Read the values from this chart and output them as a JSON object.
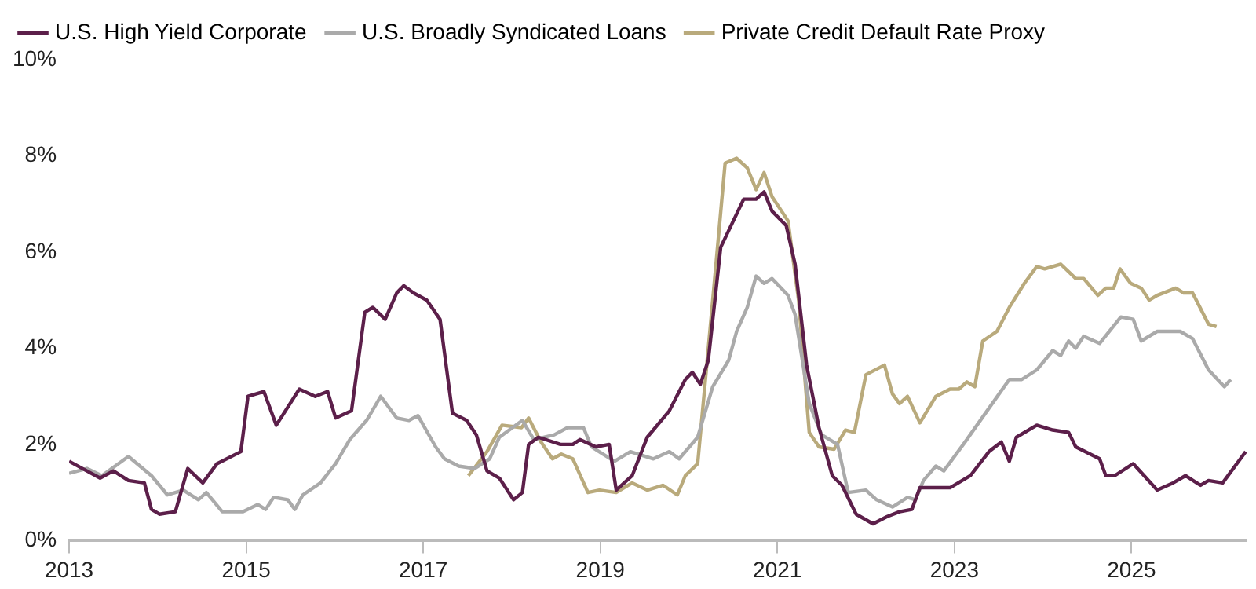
{
  "chart_data": {
    "type": "line",
    "legend": "top left",
    "grid": false,
    "marker": "none",
    "line_style": "solid",
    "xlim": [
      2013,
      2026.3
    ],
    "xticks": [
      2013,
      2015,
      2017,
      2019,
      2021,
      2023,
      2025
    ],
    "ylim": [
      0,
      10
    ],
    "yticks": [
      {
        "value": 0,
        "label": "0%"
      },
      {
        "value": 2,
        "label": "2%"
      },
      {
        "value": 4,
        "label": "4%"
      },
      {
        "value": 6,
        "label": "6%"
      },
      {
        "value": 8,
        "label": "8%"
      },
      {
        "value": 10,
        "label": "10%"
      }
    ],
    "series": [
      {
        "name": "U.S. High Yield Corporate",
        "color": "#5c1f4a",
        "x": [
          2013.0,
          2013.2,
          2013.35,
          2013.5,
          2013.67,
          2013.85,
          2013.93,
          2014.02,
          2014.2,
          2014.34,
          2014.51,
          2014.67,
          2014.94,
          2015.02,
          2015.2,
          2015.34,
          2015.6,
          2015.78,
          2015.92,
          2016.01,
          2016.19,
          2016.34,
          2016.43,
          2016.57,
          2016.7,
          2016.78,
          2016.89,
          2017.04,
          2017.19,
          2017.33,
          2017.49,
          2017.6,
          2017.72,
          2017.86,
          2018.02,
          2018.12,
          2018.19,
          2018.3,
          2018.55,
          2018.69,
          2018.77,
          2018.95,
          2019.1,
          2019.18,
          2019.36,
          2019.53,
          2019.78,
          2019.96,
          2020.04,
          2020.13,
          2020.22,
          2020.36,
          2020.62,
          2020.76,
          2020.85,
          2020.94,
          2021.1,
          2021.2,
          2021.33,
          2021.47,
          2021.62,
          2021.73,
          2021.89,
          2022.08,
          2022.24,
          2022.38,
          2022.52,
          2022.61,
          2022.95,
          2023.18,
          2023.39,
          2023.53,
          2023.62,
          2023.7,
          2023.93,
          2024.11,
          2024.29,
          2024.37,
          2024.64,
          2024.71,
          2024.81,
          2025.02,
          2025.29,
          2025.47,
          2025.61,
          2025.78,
          2025.87,
          2026.03,
          2026.29
        ],
        "values": [
          1.65,
          1.45,
          1.3,
          1.45,
          1.25,
          1.2,
          0.65,
          0.55,
          0.6,
          1.5,
          1.2,
          1.6,
          1.85,
          3.0,
          3.1,
          2.4,
          3.15,
          3.0,
          3.1,
          2.55,
          2.7,
          4.75,
          4.85,
          4.6,
          5.15,
          5.3,
          5.15,
          5.0,
          4.6,
          2.65,
          2.5,
          2.2,
          1.45,
          1.3,
          0.85,
          1.0,
          2.0,
          2.15,
          2.0,
          2.0,
          2.1,
          1.95,
          2.0,
          1.05,
          1.35,
          2.15,
          2.7,
          3.35,
          3.5,
          3.25,
          3.75,
          6.1,
          7.1,
          7.1,
          7.25,
          6.85,
          6.55,
          5.75,
          3.65,
          2.35,
          1.35,
          1.15,
          0.55,
          0.35,
          0.5,
          0.6,
          0.65,
          1.1,
          1.1,
          1.35,
          1.85,
          2.05,
          1.65,
          2.15,
          2.4,
          2.3,
          2.25,
          1.95,
          1.7,
          1.35,
          1.35,
          1.6,
          1.05,
          1.2,
          1.35,
          1.15,
          1.25,
          1.2,
          1.85
        ]
      },
      {
        "name": "U.S. Broadly Syndicated Loans",
        "color": "#aaaaaa",
        "x": [
          2013.0,
          2013.2,
          2013.37,
          2013.67,
          2013.93,
          2014.11,
          2014.29,
          2014.46,
          2014.55,
          2014.73,
          2014.96,
          2015.13,
          2015.22,
          2015.31,
          2015.47,
          2015.55,
          2015.64,
          2015.84,
          2016.01,
          2016.17,
          2016.36,
          2016.52,
          2016.7,
          2016.84,
          2016.94,
          2017.14,
          2017.24,
          2017.4,
          2017.58,
          2017.75,
          2017.86,
          2018.12,
          2018.25,
          2018.48,
          2018.63,
          2018.81,
          2018.9,
          2019.16,
          2019.34,
          2019.6,
          2019.78,
          2019.89,
          2020.1,
          2020.27,
          2020.45,
          2020.54,
          2020.66,
          2020.76,
          2020.85,
          2020.94,
          2021.12,
          2021.2,
          2021.36,
          2021.5,
          2021.68,
          2021.8,
          2022.0,
          2022.12,
          2022.3,
          2022.47,
          2022.56,
          2022.65,
          2022.79,
          2022.88,
          2023.12,
          2023.35,
          2023.62,
          2023.76,
          2023.93,
          2024.11,
          2024.2,
          2024.29,
          2024.37,
          2024.46,
          2024.64,
          2024.88,
          2025.02,
          2025.11,
          2025.29,
          2025.47,
          2025.55,
          2025.69,
          2025.87,
          2026.05,
          2026.12
        ],
        "values": [
          1.4,
          1.5,
          1.35,
          1.75,
          1.35,
          0.95,
          1.05,
          0.85,
          1.0,
          0.6,
          0.6,
          0.75,
          0.65,
          0.9,
          0.85,
          0.65,
          0.95,
          1.2,
          1.6,
          2.1,
          2.5,
          3.0,
          2.55,
          2.5,
          2.6,
          1.95,
          1.7,
          1.55,
          1.5,
          1.7,
          2.15,
          2.5,
          2.1,
          2.2,
          2.35,
          2.35,
          1.95,
          1.65,
          1.85,
          1.7,
          1.85,
          1.7,
          2.15,
          3.2,
          3.75,
          4.35,
          4.85,
          5.5,
          5.35,
          5.45,
          5.1,
          4.7,
          2.85,
          2.2,
          2.0,
          1.0,
          1.05,
          0.85,
          0.7,
          0.9,
          0.85,
          1.25,
          1.55,
          1.45,
          2.05,
          2.65,
          3.35,
          3.35,
          3.55,
          3.95,
          3.85,
          4.15,
          4.0,
          4.25,
          4.1,
          4.65,
          4.6,
          4.15,
          4.35,
          4.35,
          4.35,
          4.2,
          3.55,
          3.2,
          3.35
        ]
      },
      {
        "name": "Private Credit Default Rate Proxy",
        "color": "#b9aa7c",
        "x": [
          2017.51,
          2017.72,
          2017.89,
          2018.11,
          2018.19,
          2018.33,
          2018.46,
          2018.56,
          2018.69,
          2018.86,
          2018.99,
          2019.18,
          2019.36,
          2019.53,
          2019.71,
          2019.87,
          2019.96,
          2020.1,
          2020.27,
          2020.41,
          2020.54,
          2020.66,
          2020.76,
          2020.85,
          2020.94,
          2021.12,
          2021.24,
          2021.36,
          2021.47,
          2021.64,
          2021.77,
          2021.87,
          2022.0,
          2022.21,
          2022.3,
          2022.38,
          2022.47,
          2022.61,
          2022.79,
          2022.95,
          2023.05,
          2023.14,
          2023.23,
          2023.32,
          2023.48,
          2023.62,
          2023.79,
          2023.93,
          2024.02,
          2024.2,
          2024.37,
          2024.46,
          2024.62,
          2024.71,
          2024.8,
          2024.87,
          2024.99,
          2025.11,
          2025.2,
          2025.29,
          2025.5,
          2025.59,
          2025.69,
          2025.87,
          2025.96
        ],
        "values": [
          1.35,
          1.85,
          2.4,
          2.35,
          2.55,
          2.05,
          1.7,
          1.8,
          1.7,
          1.0,
          1.05,
          1.0,
          1.2,
          1.05,
          1.15,
          0.95,
          1.35,
          1.6,
          5.0,
          7.85,
          7.95,
          7.75,
          7.3,
          7.65,
          7.15,
          6.65,
          5.0,
          2.25,
          1.95,
          1.9,
          2.3,
          2.25,
          3.45,
          3.65,
          3.05,
          2.85,
          3.0,
          2.45,
          3.0,
          3.15,
          3.15,
          3.3,
          3.2,
          4.15,
          4.35,
          4.85,
          5.35,
          5.7,
          5.65,
          5.75,
          5.45,
          5.45,
          5.1,
          5.25,
          5.25,
          5.65,
          5.35,
          5.25,
          5.0,
          5.1,
          5.25,
          5.15,
          5.15,
          4.5,
          4.45
        ]
      }
    ]
  }
}
